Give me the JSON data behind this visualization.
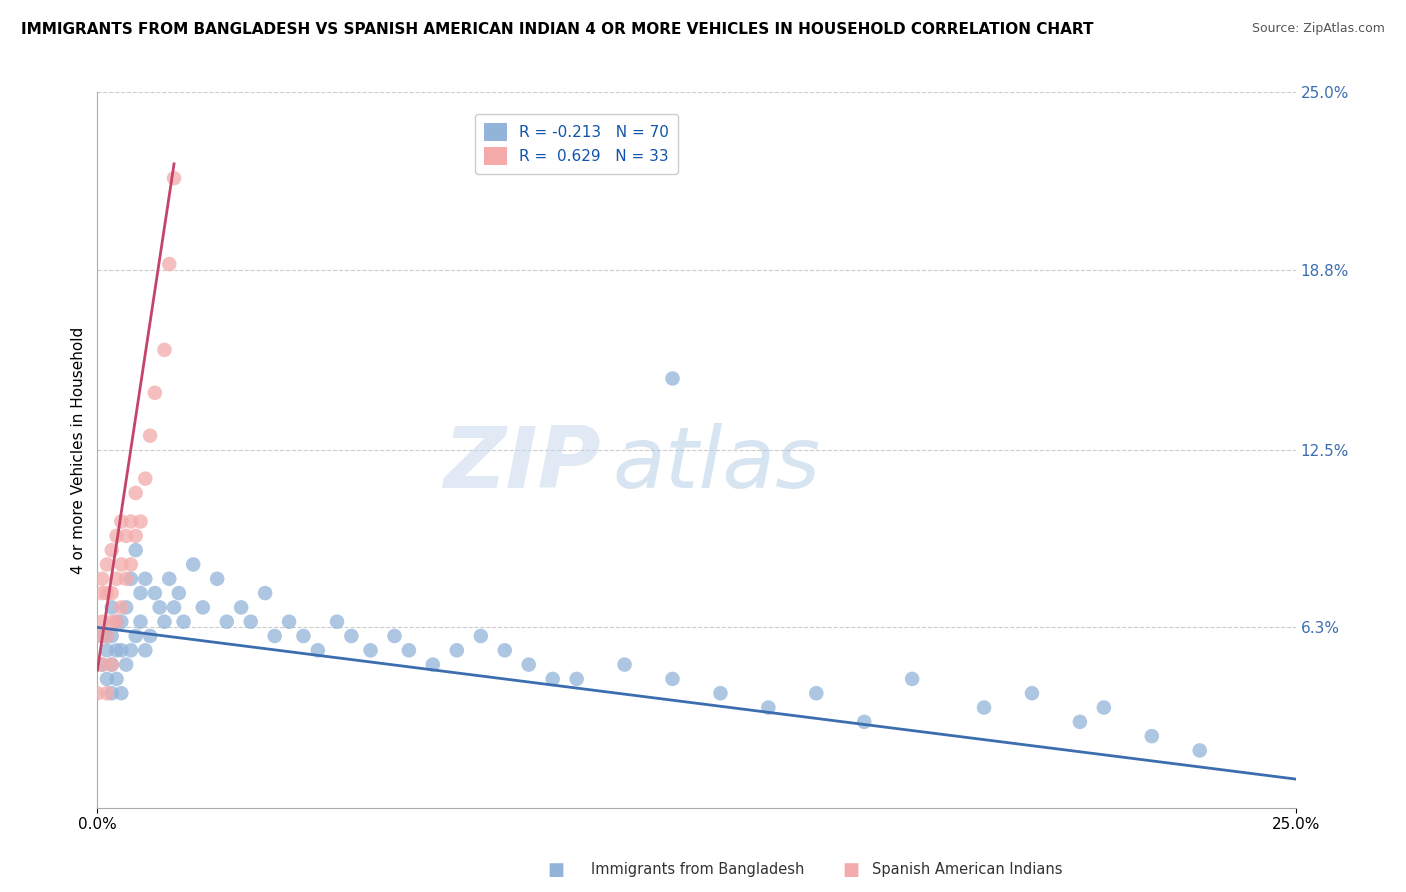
{
  "title": "IMMIGRANTS FROM BANGLADESH VS SPANISH AMERICAN INDIAN 4 OR MORE VEHICLES IN HOUSEHOLD CORRELATION CHART",
  "source": "Source: ZipAtlas.com",
  "ylabel": "4 or more Vehicles in Household",
  "legend_label1": "Immigrants from Bangladesh",
  "legend_label2": "Spanish American Indians",
  "r1": -0.213,
  "n1": 70,
  "r2": 0.629,
  "n2": 33,
  "xlim": [
    0.0,
    0.25
  ],
  "ylim": [
    0.0,
    0.25
  ],
  "ytick_labels_right": [
    "25.0%",
    "18.8%",
    "12.5%",
    "6.3%"
  ],
  "ytick_positions_right": [
    0.25,
    0.188,
    0.125,
    0.063
  ],
  "color_blue": "#92B4D9",
  "color_pink": "#F4AAAA",
  "line_blue": "#3C6EAF",
  "line_pink": "#C44569",
  "watermark_zip": "ZIP",
  "watermark_atlas": "atlas",
  "blue_points_x": [
    0.001,
    0.001,
    0.002,
    0.002,
    0.002,
    0.003,
    0.003,
    0.003,
    0.003,
    0.004,
    0.004,
    0.004,
    0.005,
    0.005,
    0.005,
    0.006,
    0.006,
    0.007,
    0.007,
    0.008,
    0.008,
    0.009,
    0.009,
    0.01,
    0.01,
    0.011,
    0.012,
    0.013,
    0.014,
    0.015,
    0.016,
    0.017,
    0.018,
    0.02,
    0.022,
    0.025,
    0.027,
    0.03,
    0.032,
    0.035,
    0.037,
    0.04,
    0.043,
    0.046,
    0.05,
    0.053,
    0.057,
    0.062,
    0.065,
    0.07,
    0.075,
    0.08,
    0.085,
    0.09,
    0.095,
    0.1,
    0.11,
    0.12,
    0.13,
    0.14,
    0.15,
    0.16,
    0.17,
    0.185,
    0.195,
    0.205,
    0.21,
    0.22,
    0.23,
    0.12
  ],
  "blue_points_y": [
    0.05,
    0.06,
    0.045,
    0.055,
    0.06,
    0.04,
    0.05,
    0.06,
    0.07,
    0.045,
    0.055,
    0.065,
    0.04,
    0.055,
    0.065,
    0.05,
    0.07,
    0.055,
    0.08,
    0.06,
    0.09,
    0.065,
    0.075,
    0.055,
    0.08,
    0.06,
    0.075,
    0.07,
    0.065,
    0.08,
    0.07,
    0.075,
    0.065,
    0.085,
    0.07,
    0.08,
    0.065,
    0.07,
    0.065,
    0.075,
    0.06,
    0.065,
    0.06,
    0.055,
    0.065,
    0.06,
    0.055,
    0.06,
    0.055,
    0.05,
    0.055,
    0.06,
    0.055,
    0.05,
    0.045,
    0.045,
    0.05,
    0.045,
    0.04,
    0.035,
    0.04,
    0.03,
    0.045,
    0.035,
    0.04,
    0.03,
    0.035,
    0.025,
    0.02,
    0.15
  ],
  "pink_points_x": [
    0.0,
    0.0,
    0.001,
    0.001,
    0.001,
    0.001,
    0.002,
    0.002,
    0.002,
    0.002,
    0.003,
    0.003,
    0.003,
    0.003,
    0.004,
    0.004,
    0.004,
    0.005,
    0.005,
    0.005,
    0.006,
    0.006,
    0.007,
    0.007,
    0.008,
    0.008,
    0.009,
    0.01,
    0.011,
    0.012,
    0.014,
    0.015,
    0.016
  ],
  "pink_points_y": [
    0.06,
    0.04,
    0.05,
    0.065,
    0.075,
    0.08,
    0.04,
    0.06,
    0.075,
    0.085,
    0.05,
    0.065,
    0.075,
    0.09,
    0.065,
    0.08,
    0.095,
    0.07,
    0.085,
    0.1,
    0.08,
    0.095,
    0.085,
    0.1,
    0.095,
    0.11,
    0.1,
    0.115,
    0.13,
    0.145,
    0.16,
    0.19,
    0.22
  ],
  "blue_line_x": [
    0.0,
    0.25
  ],
  "blue_line_y": [
    0.063,
    0.01
  ],
  "pink_line_x": [
    0.0,
    0.016
  ],
  "pink_line_y": [
    0.048,
    0.225
  ]
}
